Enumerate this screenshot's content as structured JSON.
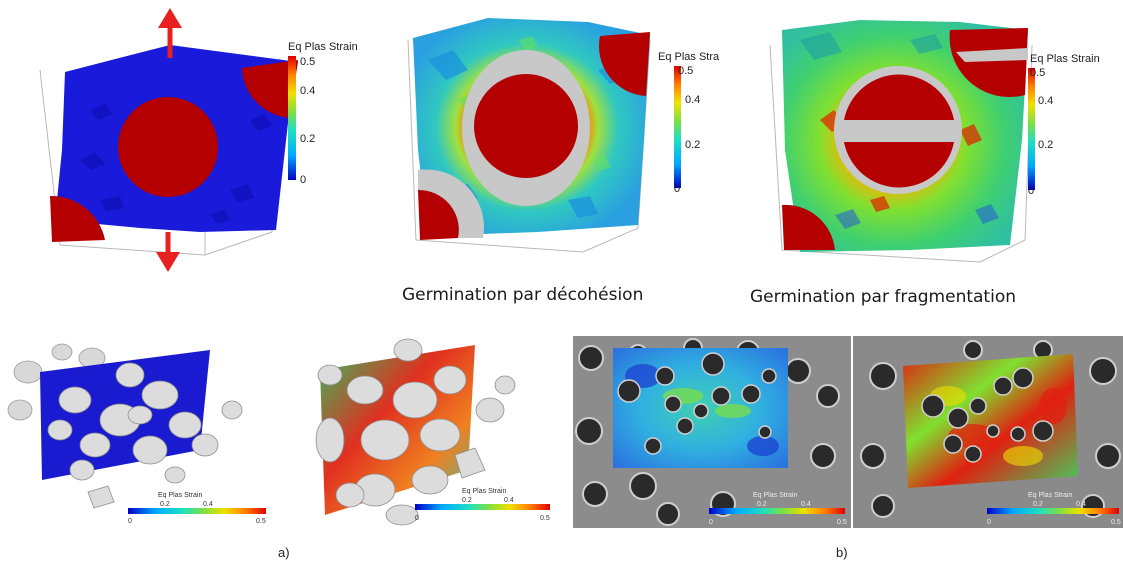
{
  "colorbar": {
    "title_full": "Eq Plas Strain",
    "title_trunc": "Eq Plas Stra",
    "ticks": [
      "0.5",
      "0.4",
      "0.2",
      "0"
    ],
    "h_ticks": [
      "0.2",
      "0.4"
    ],
    "h_ends": [
      "0",
      "0.5"
    ],
    "colors": [
      "#0000c8",
      "#00aaff",
      "#20e0c0",
      "#80e040",
      "#f0e000",
      "#ff8000",
      "#e00000"
    ]
  },
  "captions": {
    "decohesion": "Germination par décohésion",
    "fragmentation": "Germination par fragmentation"
  },
  "sublabels": {
    "a": "a)",
    "b": "b)"
  },
  "arrow_color": "#e82020"
}
